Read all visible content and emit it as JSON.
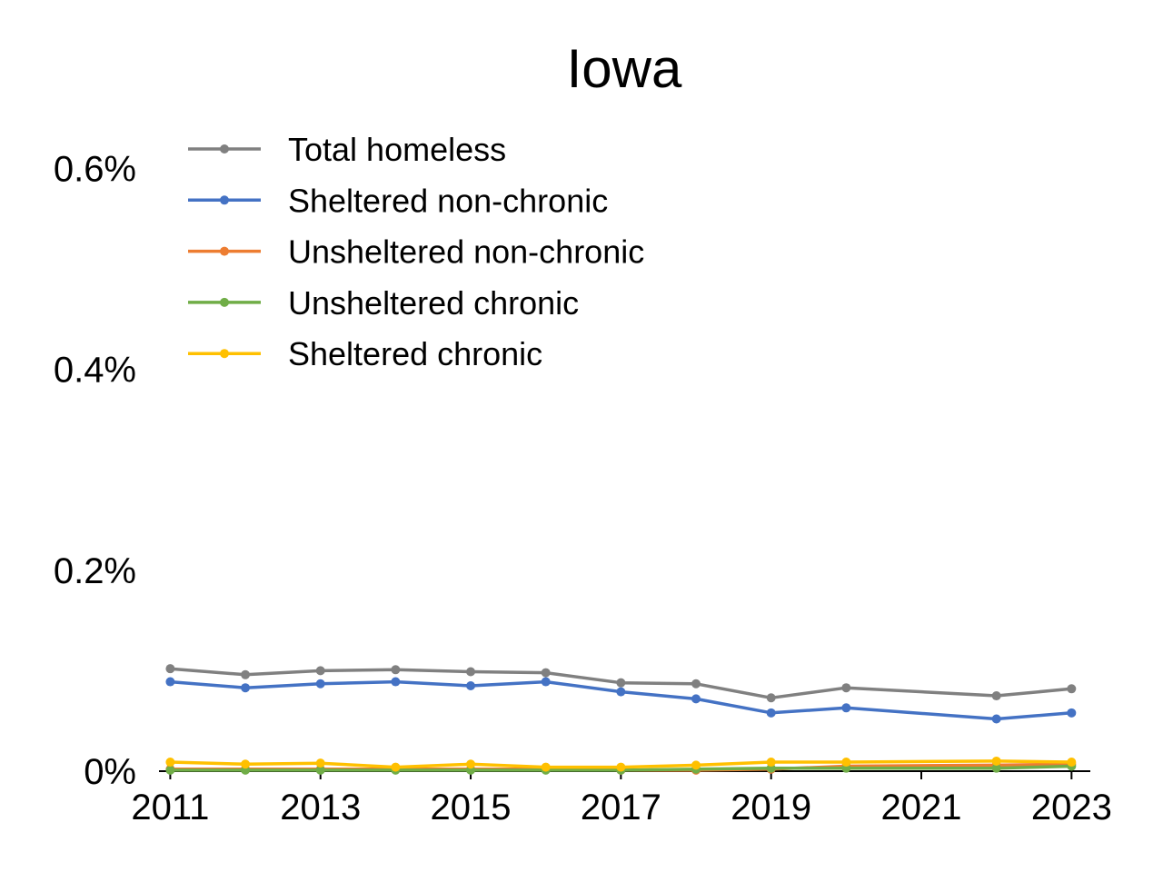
{
  "chart_data": {
    "type": "line",
    "title": "Iowa",
    "xlabel": "",
    "ylabel": "",
    "x": [
      2011,
      2012,
      2013,
      2014,
      2015,
      2016,
      2017,
      2018,
      2019,
      2020,
      2022,
      2023
    ],
    "xticks": [
      "2011",
      "2013",
      "2015",
      "2017",
      "2019",
      "2021",
      "2023"
    ],
    "xtick_values": [
      2011,
      2013,
      2015,
      2017,
      2019,
      2021,
      2023
    ],
    "xlim": [
      2010.85,
      2023.25
    ],
    "ylim": [
      0,
      0.0065
    ],
    "yticks": [
      "0%",
      "0.2%",
      "0.4%",
      "0.6%"
    ],
    "ytick_values": [
      0,
      0.002,
      0.004,
      0.006
    ],
    "grid": false,
    "legend_position": "top-left",
    "series": [
      {
        "name": "Total homeless",
        "color": "#808080",
        "values": [
          0.00102,
          0.00096,
          0.001,
          0.00101,
          0.00099,
          0.00098,
          0.00088,
          0.00087,
          0.00073,
          0.00083,
          0.00075,
          0.00082
        ]
      },
      {
        "name": "Sheltered non-chronic",
        "color": "#4472C4",
        "values": [
          0.00089,
          0.00083,
          0.00087,
          0.00089,
          0.00085,
          0.00089,
          0.00079,
          0.00072,
          0.00058,
          0.00063,
          0.00052,
          0.00058
        ]
      },
      {
        "name": "Unsheltered non-chronic",
        "color": "#ED7D31",
        "values": [
          2e-05,
          2e-05,
          2e-05,
          2e-05,
          2e-05,
          2e-05,
          1e-05,
          1e-05,
          2e-05,
          5e-05,
          6e-05,
          7e-05
        ]
      },
      {
        "name": "Unsheltered chronic",
        "color": "#70AD47",
        "values": [
          1e-05,
          1e-05,
          1e-05,
          1e-05,
          1e-05,
          1e-05,
          1e-05,
          2e-05,
          3e-05,
          3e-05,
          3e-05,
          5e-05
        ]
      },
      {
        "name": "Sheltered chronic",
        "color": "#FFC000",
        "values": [
          9e-05,
          7e-05,
          8e-05,
          4e-05,
          7e-05,
          4e-05,
          4e-05,
          6e-05,
          9e-05,
          9e-05,
          0.0001,
          9e-05
        ]
      }
    ]
  }
}
